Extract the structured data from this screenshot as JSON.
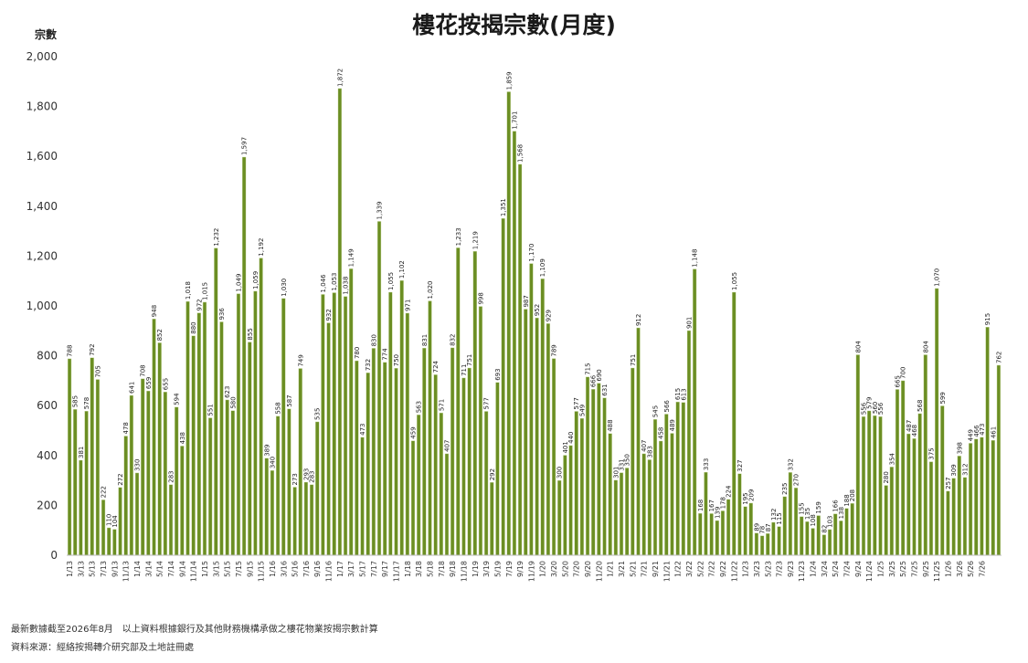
{
  "chart_data": {
    "type": "bar",
    "title": "樓花按揭宗數(月度)",
    "ylabel": "宗數",
    "xlabel": "",
    "ylim": [
      0,
      2000
    ],
    "yticks": [
      "0",
      "200",
      "400",
      "600",
      "800",
      "1,000",
      "1,200",
      "1,400",
      "1,600",
      "1,800",
      "2,000"
    ],
    "grid": false,
    "bar_color": "#6b8e23",
    "bar_edge_color": "#c9d9a0",
    "values": [
      788,
      585,
      381,
      578,
      792,
      705,
      222,
      110,
      104,
      272,
      478,
      641,
      330,
      708,
      659,
      948,
      852,
      655,
      283,
      594,
      438,
      1018,
      880,
      972,
      1015,
      551,
      1232,
      936,
      623,
      580,
      1049,
      1597,
      855,
      1059,
      1192,
      389,
      340,
      558,
      1030,
      587,
      273,
      749,
      293,
      283,
      535,
      1046,
      932,
      1053,
      1872,
      1038,
      1149,
      780,
      473,
      732,
      830,
      1339,
      774,
      1055,
      750,
      1102,
      971,
      459,
      563,
      831,
      1020,
      724,
      571,
      407,
      832,
      1233,
      711,
      751,
      1219,
      998,
      577,
      292,
      693,
      1351,
      1859,
      1701,
      1568,
      987,
      1170,
      952,
      1109,
      929,
      789,
      300,
      401,
      440,
      577,
      549,
      715,
      666,
      690,
      631,
      488,
      301,
      331,
      350,
      751,
      912,
      407,
      383,
      545,
      458,
      566,
      489,
      615,
      613,
      901,
      1148,
      168,
      333,
      167,
      139,
      178,
      224,
      1055,
      327,
      195,
      209,
      89,
      78,
      87,
      132,
      115,
      235,
      332,
      270,
      155,
      135,
      108,
      159,
      82,
      103,
      166,
      138,
      188,
      208,
      804,
      556,
      579,
      560,
      556,
      280,
      354,
      665,
      700,
      487,
      468,
      568,
      804,
      375,
      1070,
      599,
      257,
      309,
      398,
      312,
      449,
      466,
      473,
      915,
      461,
      762
    ],
    "xtick_labels": [
      "1/13",
      "3/13",
      "5/13",
      "7/13",
      "9/13",
      "11/13",
      "1/14",
      "3/14",
      "5/14",
      "7/14",
      "9/14",
      "11/14",
      "1/15",
      "3/15",
      "5/15",
      "7/15",
      "9/15",
      "11/15",
      "1/16",
      "3/16",
      "5/16",
      "7/16",
      "9/16",
      "11/16",
      "1/17",
      "3/17",
      "5/17",
      "7/17",
      "9/17",
      "11/17",
      "1/18",
      "3/18",
      "5/18",
      "7/18",
      "9/18",
      "11/18",
      "1/19",
      "3/19",
      "5/19",
      "7/19",
      "9/19",
      "11/19",
      "1/20",
      "3/20",
      "5/20",
      "7/20",
      "9/20",
      "11/20",
      "1/21",
      "3/21",
      "5/21",
      "7/21",
      "9/21",
      "11/21",
      "1/22",
      "3/22",
      "5/22",
      "7/22",
      "9/22",
      "11/22",
      "1/23",
      "3/23",
      "5/23",
      "7/23",
      "9/23",
      "11/23",
      "1/24",
      "3/24",
      "5/24",
      "7/24",
      "9/24",
      "11/24",
      "1/25",
      "3/25",
      "5/25",
      "7/25",
      "9/25",
      "11/25",
      "1/26",
      "3/26",
      "5/26",
      "7/26"
    ]
  },
  "footer": {
    "note_1": "最新數據截至2026年8月　以上資料根據銀行及其他財務機構承做之樓花物業按揭宗數計算",
    "note_2": "資料來源：經絡按揭轉介研究部及土地註冊處"
  }
}
